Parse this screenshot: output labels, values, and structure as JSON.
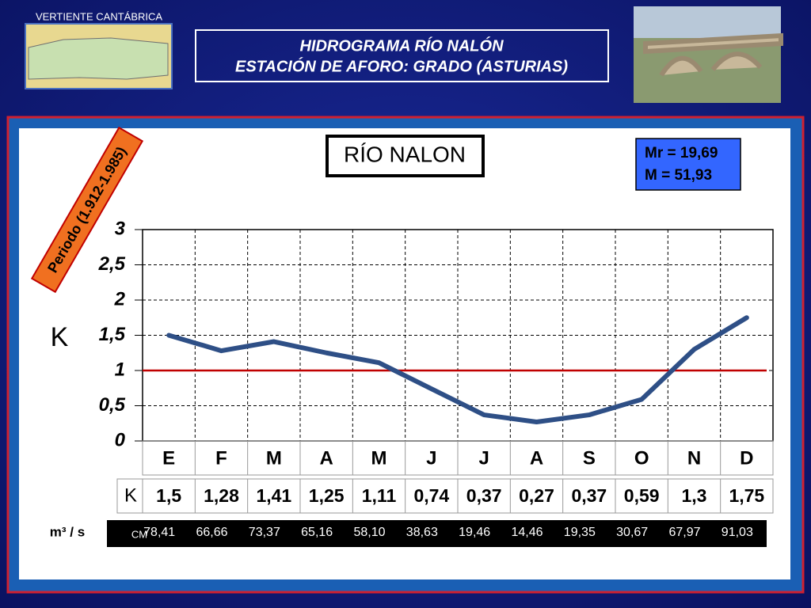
{
  "header": {
    "region": "VERTIENTE CANTÁBRICA",
    "title_line1": "HIDROGRAMA  RÍO  NALÓN",
    "title_line2": "ESTACIÓN DE AFORO:  GRADO (ASTURIAS)"
  },
  "chart_data": {
    "type": "line",
    "title": "RÍO NALON",
    "period": "Periodo (1.912-1.985)",
    "stats": [
      "Mr = 19,69",
      "M = 51,93"
    ],
    "y_label": "K",
    "row_label": "K",
    "categories": [
      "E",
      "F",
      "M",
      "A",
      "M",
      "J",
      "J",
      "A",
      "S",
      "O",
      "N",
      "D"
    ],
    "series": [
      {
        "name": "K",
        "color": "#2e4f86",
        "values": [
          1.5,
          1.28,
          1.41,
          1.25,
          1.11,
          0.74,
          0.37,
          0.27,
          0.37,
          0.59,
          1.3,
          1.75
        ],
        "value_labels": [
          "1,5",
          "1,28",
          "1,41",
          "1,25",
          "1,11",
          "0,74",
          "0,37",
          "0,27",
          "0,37",
          "0,59",
          "1,3",
          "1,75"
        ]
      }
    ],
    "ylim": [
      0,
      3
    ],
    "yticks": [
      0,
      {
        "value": 0.5,
        "label": "0,5"
      },
      1,
      {
        "value": 1.5,
        "label": "1,5"
      },
      2,
      {
        "value": 2.5,
        "label": "2,5"
      },
      3
    ],
    "reference_line": {
      "value": 1,
      "color": "#c00000"
    },
    "grid": true,
    "flow_table": {
      "unit": "m³ / s",
      "row_label": "CM",
      "values": [
        "78,41",
        "66,66",
        "73,37",
        "65,16",
        "58,10",
        "38,63",
        "19,46",
        "14,46",
        "19,35",
        "30,67",
        "67,97",
        "91,03"
      ]
    }
  }
}
